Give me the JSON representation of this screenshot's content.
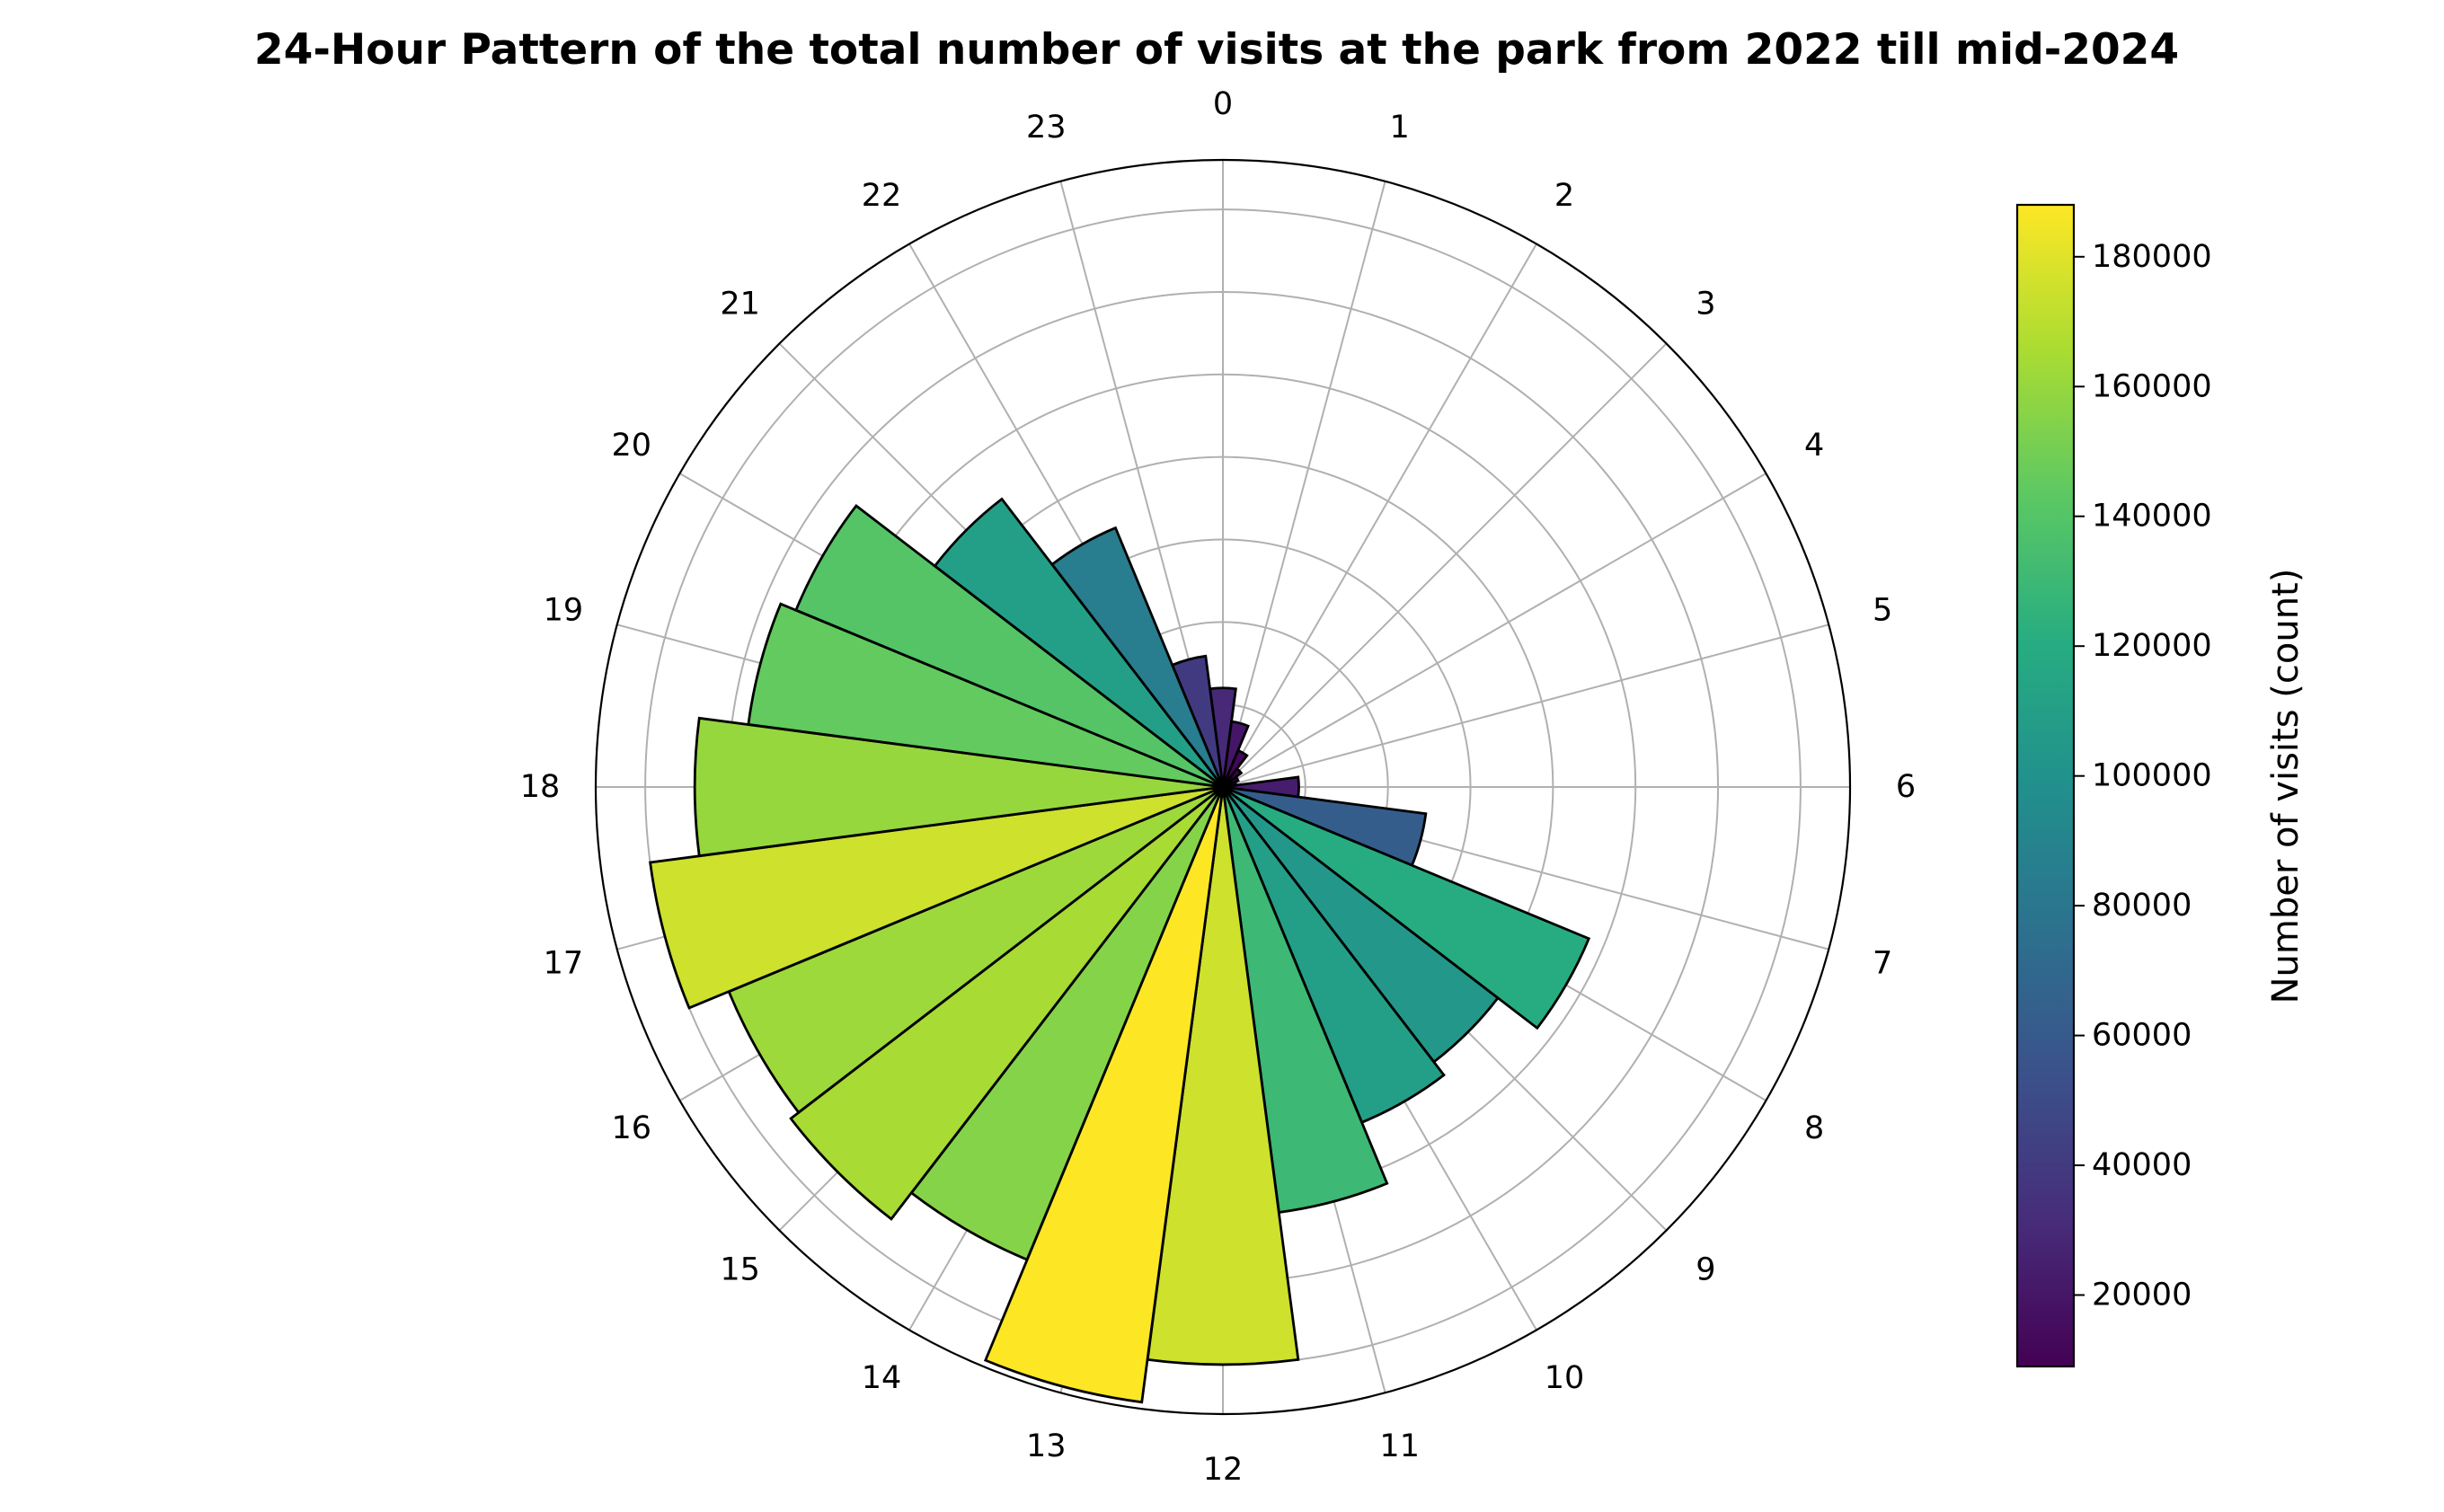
{
  "chart_data": {
    "type": "polar-bar",
    "title": "24-Hour Pattern of the total number of visits at the park from 2022 till mid-2024",
    "categories": [
      "0",
      "1",
      "2",
      "3",
      "4",
      "5",
      "6",
      "7",
      "8",
      "9",
      "10",
      "11",
      "12",
      "13",
      "14",
      "15",
      "16",
      "17",
      "18",
      "19",
      "20",
      "21",
      "22",
      "23"
    ],
    "values": [
      30000,
      20000,
      12000,
      7000,
      5000,
      4000,
      23000,
      62000,
      120000,
      105000,
      110000,
      130000,
      175000,
      188000,
      155000,
      165000,
      162000,
      175000,
      160000,
      145000,
      140000,
      110000,
      85000,
      40000
    ],
    "radial_range": [
      0,
      190000
    ],
    "colorbar": {
      "label": "Number of visits (count)",
      "ticks": [
        20000,
        40000,
        60000,
        80000,
        100000,
        120000,
        140000,
        160000,
        180000
      ],
      "range": [
        9000,
        188000
      ],
      "colormap": "viridis"
    },
    "grid": true
  }
}
